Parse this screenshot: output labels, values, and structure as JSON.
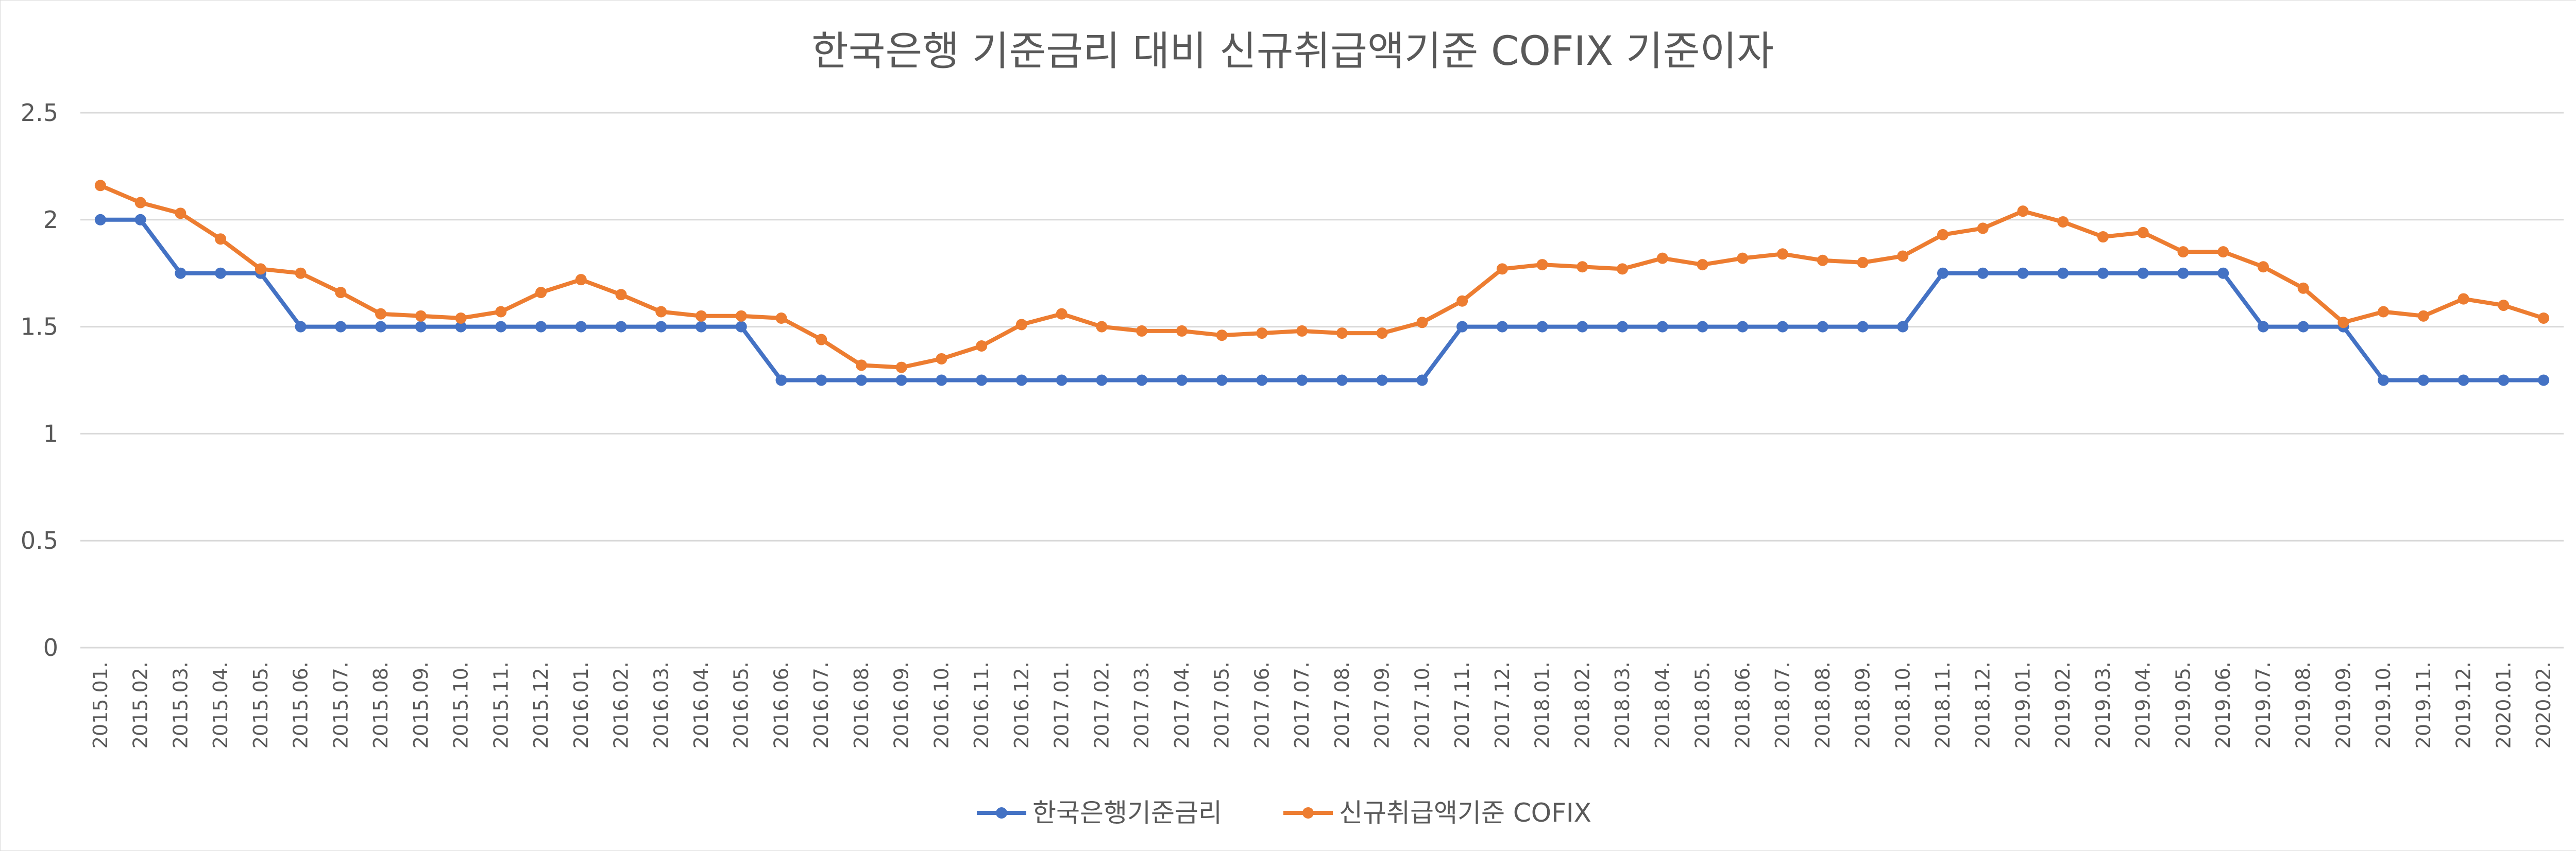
{
  "chart_data": {
    "type": "line",
    "title": "한국은행 기준금리 대비 신규취급액기준  COFIX 기준이자",
    "xlabel": "",
    "ylabel": "",
    "ylim": [
      0,
      2.5
    ],
    "yticks": [
      "0",
      "0.5",
      "1",
      "1.5",
      "2",
      "2.5"
    ],
    "grid": true,
    "legend_position": "bottom",
    "categories": [
      "2015.01.",
      "2015.02.",
      "2015.03.",
      "2015.04.",
      "2015.05.",
      "2015.06.",
      "2015.07.",
      "2015.08.",
      "2015.09.",
      "2015.10.",
      "2015.11.",
      "2015.12.",
      "2016.01.",
      "2016.02.",
      "2016.03.",
      "2016.04.",
      "2016.05.",
      "2016.06.",
      "2016.07.",
      "2016.08.",
      "2016.09.",
      "2016.10.",
      "2016.11.",
      "2016.12.",
      "2017.01.",
      "2017.02.",
      "2017.03.",
      "2017.04.",
      "2017.05.",
      "2017.06.",
      "2017.07.",
      "2017.08.",
      "2017.09.",
      "2017.10.",
      "2017.11.",
      "2017.12.",
      "2018.01.",
      "2018.02.",
      "2018.03.",
      "2018.04.",
      "2018.05.",
      "2018.06.",
      "2018.07.",
      "2018.08.",
      "2018.09.",
      "2018.10.",
      "2018.11.",
      "2018.12.",
      "2019.01.",
      "2019.02.",
      "2019.03.",
      "2019.04.",
      "2019.05.",
      "2019.06.",
      "2019.07.",
      "2019.08.",
      "2019.09.",
      "2019.10.",
      "2019.11.",
      "2019.12.",
      "2020.01.",
      "2020.02."
    ],
    "series": [
      {
        "name": "한국은행기준금리",
        "color": "#4472C4",
        "values": [
          2,
          2,
          1.75,
          1.75,
          1.75,
          1.5,
          1.5,
          1.5,
          1.5,
          1.5,
          1.5,
          1.5,
          1.5,
          1.5,
          1.5,
          1.5,
          1.5,
          1.25,
          1.25,
          1.25,
          1.25,
          1.25,
          1.25,
          1.25,
          1.25,
          1.25,
          1.25,
          1.25,
          1.25,
          1.25,
          1.25,
          1.25,
          1.25,
          1.25,
          1.5,
          1.5,
          1.5,
          1.5,
          1.5,
          1.5,
          1.5,
          1.5,
          1.5,
          1.5,
          1.5,
          1.5,
          1.75,
          1.75,
          1.75,
          1.75,
          1.75,
          1.75,
          1.75,
          1.75,
          1.5,
          1.5,
          1.5,
          1.25,
          1.25,
          1.25,
          1.25,
          1.25
        ]
      },
      {
        "name": "신규취급액기준 COFIX",
        "color": "#ED7D31",
        "values": [
          2.16,
          2.08,
          2.03,
          1.91,
          1.77,
          1.75,
          1.66,
          1.56,
          1.55,
          1.54,
          1.57,
          1.66,
          1.72,
          1.65,
          1.57,
          1.55,
          1.55,
          1.54,
          1.44,
          1.32,
          1.31,
          1.35,
          1.41,
          1.51,
          1.56,
          1.5,
          1.48,
          1.48,
          1.46,
          1.47,
          1.48,
          1.47,
          1.47,
          1.52,
          1.62,
          1.77,
          1.79,
          1.78,
          1.77,
          1.82,
          1.79,
          1.82,
          1.84,
          1.81,
          1.8,
          1.83,
          1.93,
          1.96,
          2.04,
          1.99,
          1.92,
          1.94,
          1.85,
          1.85,
          1.78,
          1.68,
          1.52,
          1.57,
          1.55,
          1.63,
          1.6,
          1.54
        ]
      }
    ]
  }
}
